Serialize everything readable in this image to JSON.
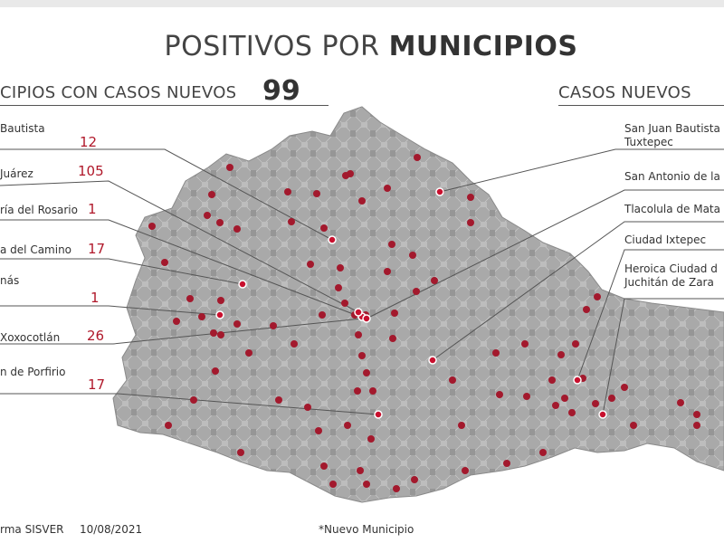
{
  "title_light": "POSITIVOS POR ",
  "title_bold": "MUNICIPIOS",
  "left_header": "CIPIOS CON CASOS NUEVOS",
  "total_new": "99",
  "right_header": "CASOS NUEVOS",
  "left_entries": [
    {
      "name": "Bautista",
      "value": "12"
    },
    {
      "name": "Juárez",
      "value": "105"
    },
    {
      "name": "ría del Rosario",
      "value": "1"
    },
    {
      "name": "a del Camino",
      "value": "17"
    },
    {
      "name": "nás",
      "value": "1"
    },
    {
      "name": "Xoxocotlán",
      "value": "26"
    },
    {
      "name": "n de Porfirio",
      "value": "17"
    }
  ],
  "right_entries": [
    {
      "line1": "San Juan Bautista",
      "line2": "Tuxtepec"
    },
    {
      "line1": "San Antonio de la",
      "line2": ""
    },
    {
      "line1": "Tlacolula de Mata",
      "line2": ""
    },
    {
      "line1": "Ciudad Ixtepec",
      "line2": ""
    },
    {
      "line1": "Heroica Ciudad d",
      "line2": "Juchitán de Zara"
    }
  ],
  "footer_source": "rma SISVER",
  "footer_date": "10/08/2021",
  "footer_note": "*Nuevo Municipio",
  "colors": {
    "marker": "#a3192d",
    "marker_highlight": "#c8102e",
    "map_fill": "#a8a8a8",
    "value_text": "#b0182a"
  }
}
